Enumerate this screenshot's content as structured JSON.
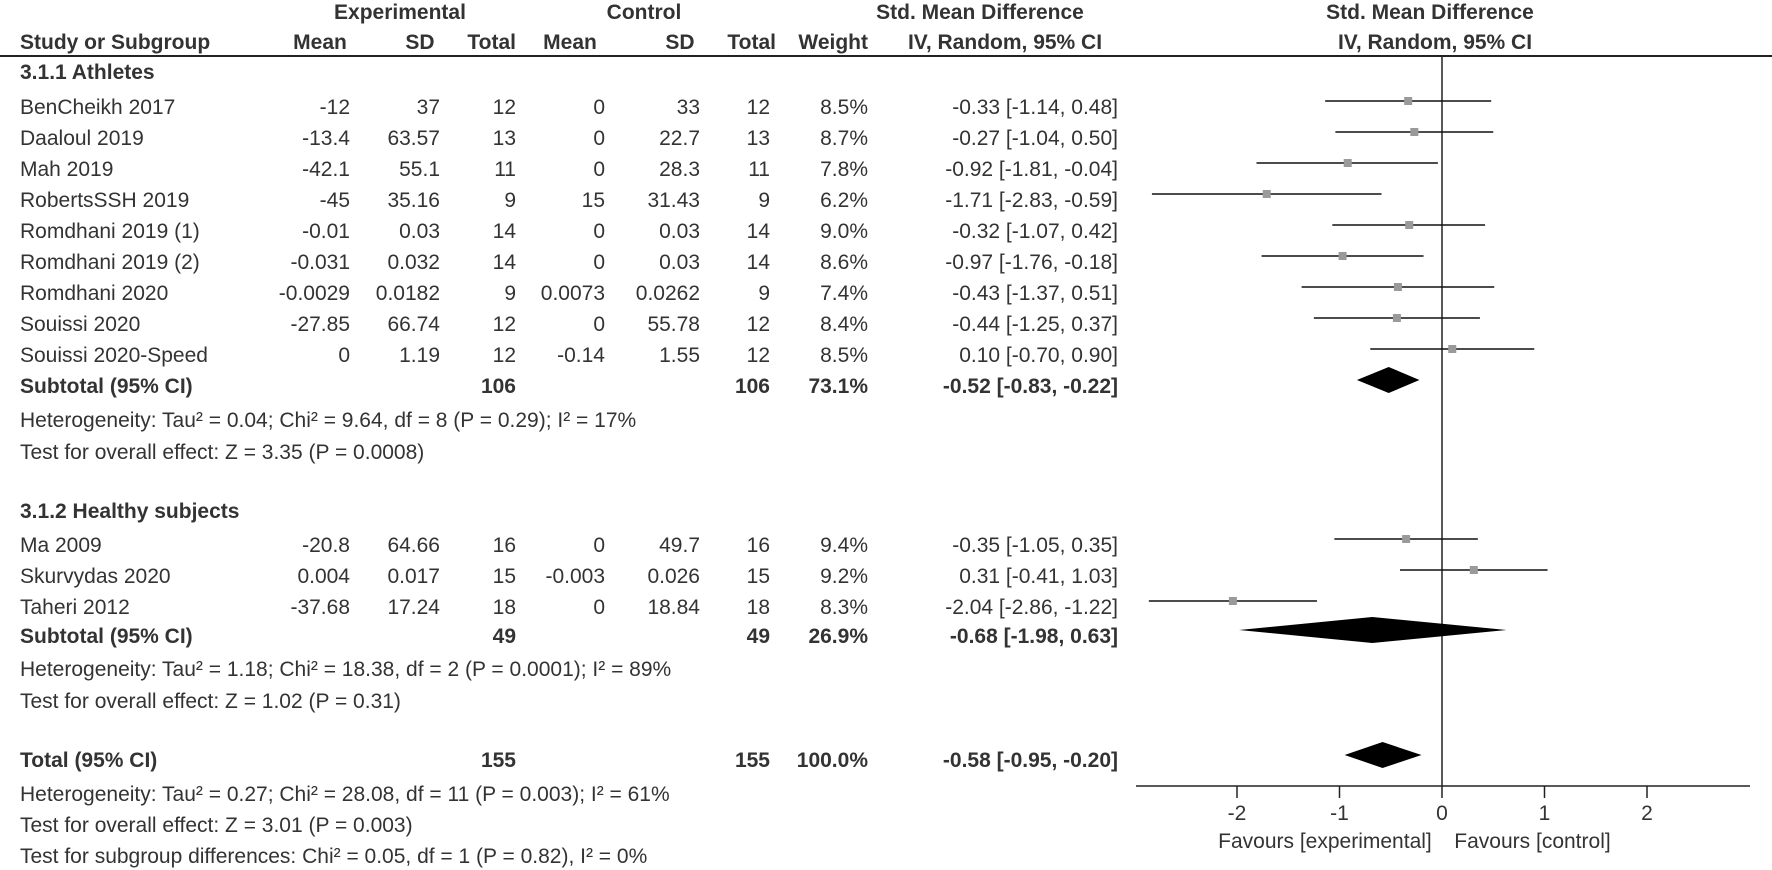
{
  "header": {
    "experimental": "Experimental",
    "control": "Control",
    "smd_table": "Std. Mean Difference",
    "smd_plot": "Std. Mean Difference",
    "study": "Study or Subgroup",
    "mean1": "Mean",
    "sd1": "SD",
    "total1": "Total",
    "mean2": "Mean",
    "sd2": "SD",
    "total2": "Total",
    "weight": "Weight",
    "ci_table": "IV, Random, 95% CI",
    "ci_plot": "IV, Random, 95% CI"
  },
  "groups": [
    {
      "title": "3.1.1 Athletes",
      "studies": [
        {
          "name": "BenCheikh 2017",
          "m1": "-12",
          "sd1": "37",
          "n1": "12",
          "m2": "0",
          "sd2": "33",
          "n2": "12",
          "weight": "8.5%",
          "ci": "-0.33 [-1.14, 0.48]"
        },
        {
          "name": "Daaloul 2019",
          "m1": "-13.4",
          "sd1": "63.57",
          "n1": "13",
          "m2": "0",
          "sd2": "22.7",
          "n2": "13",
          "weight": "8.7%",
          "ci": "-0.27 [-1.04, 0.50]"
        },
        {
          "name": "Mah 2019",
          "m1": "-42.1",
          "sd1": "55.1",
          "n1": "11",
          "m2": "0",
          "sd2": "28.3",
          "n2": "11",
          "weight": "7.8%",
          "ci": "-0.92 [-1.81, -0.04]"
        },
        {
          "name": "RobertsSSH 2019",
          "m1": "-45",
          "sd1": "35.16",
          "n1": "9",
          "m2": "15",
          "sd2": "31.43",
          "n2": "9",
          "weight": "6.2%",
          "ci": "-1.71 [-2.83, -0.59]"
        },
        {
          "name": "Romdhani 2019 (1)",
          "m1": "-0.01",
          "sd1": "0.03",
          "n1": "14",
          "m2": "0",
          "sd2": "0.03",
          "n2": "14",
          "weight": "9.0%",
          "ci": "-0.32 [-1.07, 0.42]"
        },
        {
          "name": "Romdhani 2019 (2)",
          "m1": "-0.031",
          "sd1": "0.032",
          "n1": "14",
          "m2": "0",
          "sd2": "0.03",
          "n2": "14",
          "weight": "8.6%",
          "ci": "-0.97 [-1.76, -0.18]"
        },
        {
          "name": "Romdhani 2020",
          "m1": "-0.0029",
          "sd1": "0.0182",
          "n1": "9",
          "m2": "0.0073",
          "sd2": "0.0262",
          "n2": "9",
          "weight": "7.4%",
          "ci": "-0.43 [-1.37, 0.51]"
        },
        {
          "name": "Souissi 2020",
          "m1": "-27.85",
          "sd1": "66.74",
          "n1": "12",
          "m2": "0",
          "sd2": "55.78",
          "n2": "12",
          "weight": "8.4%",
          "ci": "-0.44 [-1.25, 0.37]"
        },
        {
          "name": "Souissi 2020-Speed",
          "m1": "0",
          "sd1": "1.19",
          "n1": "12",
          "m2": "-0.14",
          "sd2": "1.55",
          "n2": "12",
          "weight": "8.5%",
          "ci": "0.10 [-0.70, 0.90]"
        }
      ],
      "subtotal": {
        "label": "Subtotal (95% CI)",
        "n1": "106",
        "n2": "106",
        "weight": "73.1%",
        "ci": "-0.52 [-0.83, -0.22]"
      },
      "heterogeneity": "Heterogeneity: Tau² = 0.04; Chi² = 9.64, df = 8 (P = 0.29); I² = 17%",
      "overall": "Test for overall effect: Z = 3.35 (P = 0.0008)"
    },
    {
      "title": "3.1.2 Healthy subjects",
      "studies": [
        {
          "name": "Ma 2009",
          "m1": "-20.8",
          "sd1": "64.66",
          "n1": "16",
          "m2": "0",
          "sd2": "49.7",
          "n2": "16",
          "weight": "9.4%",
          "ci": "-0.35 [-1.05, 0.35]"
        },
        {
          "name": "Skurvydas 2020",
          "m1": "0.004",
          "sd1": "0.017",
          "n1": "15",
          "m2": "-0.003",
          "sd2": "0.026",
          "n2": "15",
          "weight": "9.2%",
          "ci": "0.31 [-0.41, 1.03]"
        },
        {
          "name": "Taheri 2012",
          "m1": "-37.68",
          "sd1": "17.24",
          "n1": "18",
          "m2": "0",
          "sd2": "18.84",
          "n2": "18",
          "weight": "8.3%",
          "ci": "-2.04 [-2.86, -1.22]"
        }
      ],
      "subtotal": {
        "label": "Subtotal (95% CI)",
        "n1": "49",
        "n2": "49",
        "weight": "26.9%",
        "ci": "-0.68 [-1.98, 0.63]"
      },
      "heterogeneity": "Heterogeneity: Tau² = 1.18; Chi² = 18.38, df = 2 (P = 0.0001); I² = 89%",
      "overall": "Test for overall effect: Z = 1.02 (P = 0.31)"
    }
  ],
  "total": {
    "label": "Total (95% CI)",
    "n1": "155",
    "n2": "155",
    "weight": "100.0%",
    "ci": "-0.58 [-0.95, -0.20]",
    "heterogeneity": "Heterogeneity: Tau² = 0.27; Chi² = 28.08, df = 11 (P = 0.003); I² = 61%",
    "overall": "Test for overall effect: Z = 3.01 (P = 0.003)",
    "subgroup": "Test for subgroup differences: Chi² = 0.05, df = 1 (P = 0.82), I² = 0%"
  },
  "chart_data": {
    "type": "forest",
    "title": "Std. Mean Difference",
    "subtitle": "IV, Random, 95% CI",
    "xlim": [
      -3,
      3
    ],
    "xticks": [
      -2,
      -1,
      0,
      1,
      2
    ],
    "xtick_labels": [
      "-2",
      "-1",
      "0",
      "1",
      "2"
    ],
    "left_label": "Favours [experimental]",
    "right_label": "Favours [control]",
    "studies": [
      {
        "name": "BenCheikh 2017",
        "est": -0.33,
        "lo": -1.14,
        "hi": 0.48
      },
      {
        "name": "Daaloul 2019",
        "est": -0.27,
        "lo": -1.04,
        "hi": 0.5
      },
      {
        "name": "Mah 2019",
        "est": -0.92,
        "lo": -1.81,
        "hi": -0.04
      },
      {
        "name": "RobertsSSH 2019",
        "est": -1.71,
        "lo": -2.83,
        "hi": -0.59
      },
      {
        "name": "Romdhani 2019 (1)",
        "est": -0.32,
        "lo": -1.07,
        "hi": 0.42
      },
      {
        "name": "Romdhani 2019 (2)",
        "est": -0.97,
        "lo": -1.76,
        "hi": -0.18
      },
      {
        "name": "Romdhani 2020",
        "est": -0.43,
        "lo": -1.37,
        "hi": 0.51
      },
      {
        "name": "Souissi 2020",
        "est": -0.44,
        "lo": -1.25,
        "hi": 0.37
      },
      {
        "name": "Souissi 2020-Speed",
        "est": 0.1,
        "lo": -0.7,
        "hi": 0.9
      },
      {
        "name": "Ma 2009",
        "est": -0.35,
        "lo": -1.05,
        "hi": 0.35
      },
      {
        "name": "Skurvydas 2020",
        "est": 0.31,
        "lo": -0.41,
        "hi": 1.03
      },
      {
        "name": "Taheri 2012",
        "est": -2.04,
        "lo": -2.86,
        "hi": -1.22
      }
    ],
    "summaries": [
      {
        "name": "Subtotal Athletes",
        "est": -0.52,
        "lo": -0.83,
        "hi": -0.22
      },
      {
        "name": "Subtotal Healthy subjects",
        "est": -0.68,
        "lo": -1.98,
        "hi": 0.63
      },
      {
        "name": "Total",
        "est": -0.58,
        "lo": -0.95,
        "hi": -0.2
      }
    ]
  }
}
